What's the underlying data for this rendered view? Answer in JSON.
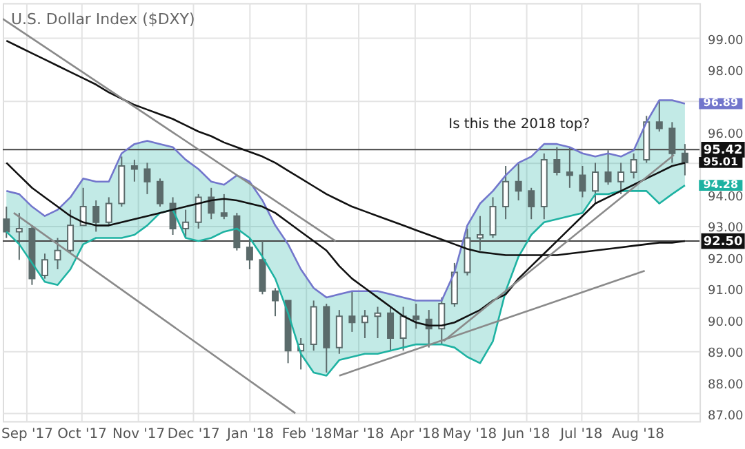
{
  "chart_data": {
    "type": "candlestick",
    "title": "U.S. Dollar Index ($DXY)",
    "x": [
      "2017-08-21",
      "2017-08-28",
      "2017-09-04",
      "2017-09-11",
      "2017-09-18",
      "2017-09-25",
      "2017-10-02",
      "2017-10-09",
      "2017-10-16",
      "2017-10-23",
      "2017-10-30",
      "2017-11-06",
      "2017-11-13",
      "2017-11-20",
      "2017-11-27",
      "2017-12-04",
      "2017-12-11",
      "2017-12-18",
      "2017-12-25",
      "2018-01-01",
      "2018-01-08",
      "2018-01-15",
      "2018-01-22",
      "2018-01-29",
      "2018-02-05",
      "2018-02-12",
      "2018-02-19",
      "2018-02-26",
      "2018-03-05",
      "2018-03-12",
      "2018-03-19",
      "2018-03-26",
      "2018-04-02",
      "2018-04-09",
      "2018-04-16",
      "2018-04-23",
      "2018-04-30",
      "2018-05-07",
      "2018-05-14",
      "2018-05-21",
      "2018-05-28",
      "2018-06-04",
      "2018-06-11",
      "2018-06-18",
      "2018-06-25",
      "2018-07-02",
      "2018-07-09",
      "2018-07-16",
      "2018-07-23",
      "2018-07-30",
      "2018-08-06",
      "2018-08-13",
      "2018-08-20",
      "2018-08-27"
    ],
    "ohlc": [
      [
        93.2,
        93.6,
        92.6,
        92.8
      ],
      [
        92.8,
        93.4,
        91.9,
        92.9
      ],
      [
        92.9,
        93.0,
        91.1,
        91.3
      ],
      [
        91.4,
        92.1,
        91.3,
        91.9
      ],
      [
        91.9,
        92.6,
        91.6,
        92.2
      ],
      [
        92.2,
        93.5,
        92.1,
        93.0
      ],
      [
        93.0,
        94.2,
        93.0,
        93.6
      ],
      [
        93.6,
        93.8,
        92.8,
        93.1
      ],
      [
        93.1,
        93.9,
        93.0,
        93.7
      ],
      [
        93.7,
        95.2,
        93.6,
        94.9
      ],
      [
        94.9,
        95.1,
        94.4,
        94.8
      ],
      [
        94.8,
        95.0,
        94.0,
        94.4
      ],
      [
        94.4,
        94.5,
        93.6,
        93.7
      ],
      [
        93.7,
        93.9,
        92.7,
        92.9
      ],
      [
        92.9,
        93.5,
        92.6,
        93.1
      ],
      [
        93.1,
        94.0,
        92.9,
        93.9
      ],
      [
        93.9,
        94.2,
        93.2,
        93.4
      ],
      [
        93.4,
        94.0,
        93.2,
        93.3
      ],
      [
        93.3,
        93.4,
        92.2,
        92.3
      ],
      [
        92.3,
        92.6,
        91.6,
        91.9
      ],
      [
        91.9,
        92.5,
        90.8,
        90.9
      ],
      [
        90.9,
        91.0,
        90.1,
        90.6
      ],
      [
        90.6,
        90.6,
        88.6,
        89.0
      ],
      [
        89.0,
        89.4,
        88.4,
        89.2
      ],
      [
        89.2,
        90.6,
        89.0,
        90.4
      ],
      [
        90.4,
        90.5,
        88.3,
        89.1
      ],
      [
        89.1,
        90.3,
        88.9,
        90.1
      ],
      [
        90.1,
        90.9,
        89.6,
        89.9
      ],
      [
        89.9,
        90.3,
        89.4,
        90.1
      ],
      [
        90.1,
        90.4,
        89.4,
        90.2
      ],
      [
        90.2,
        90.4,
        89.0,
        89.4
      ],
      [
        89.4,
        90.4,
        89.0,
        90.1
      ],
      [
        90.1,
        90.5,
        89.7,
        90.0
      ],
      [
        90.0,
        90.3,
        89.1,
        89.7
      ],
      [
        89.7,
        90.7,
        89.2,
        90.5
      ],
      [
        90.5,
        91.8,
        90.4,
        91.5
      ],
      [
        91.5,
        92.9,
        91.4,
        92.6
      ],
      [
        92.6,
        93.3,
        92.2,
        92.7
      ],
      [
        92.7,
        93.9,
        92.6,
        93.6
      ],
      [
        93.6,
        94.9,
        93.2,
        94.4
      ],
      [
        94.4,
        95.0,
        93.8,
        94.1
      ],
      [
        94.1,
        94.2,
        93.2,
        93.6
      ],
      [
        93.6,
        95.3,
        93.2,
        95.1
      ],
      [
        95.1,
        95.5,
        94.6,
        94.7
      ],
      [
        94.7,
        95.5,
        94.2,
        94.6
      ],
      [
        94.6,
        94.9,
        93.9,
        94.1
      ],
      [
        94.1,
        95.0,
        93.7,
        94.7
      ],
      [
        94.7,
        95.4,
        94.3,
        94.4
      ],
      [
        94.4,
        95.0,
        94.0,
        94.7
      ],
      [
        94.7,
        95.3,
        94.5,
        95.1
      ],
      [
        95.1,
        96.5,
        95.0,
        96.3
      ],
      [
        96.3,
        96.99,
        96.0,
        96.1
      ],
      [
        96.1,
        96.3,
        95.0,
        95.3
      ],
      [
        95.3,
        95.6,
        94.6,
        95.01
      ]
    ],
    "color": "#5b6b6b",
    "series": [
      {
        "type": "line",
        "color": "#7276cc",
        "values": [
          94.1,
          94.0,
          93.6,
          93.3,
          93.5,
          93.9,
          94.5,
          94.4,
          94.4,
          95.3,
          95.6,
          95.7,
          95.6,
          95.5,
          95.1,
          94.8,
          94.4,
          94.3,
          94.6,
          94.4,
          93.8,
          93.0,
          92.4,
          91.6,
          91.0,
          90.7,
          90.8,
          90.9,
          90.9,
          90.9,
          90.8,
          90.7,
          90.6,
          90.6,
          90.6,
          91.5,
          93.0,
          93.7,
          94.1,
          94.6,
          95.0,
          95.2,
          95.6,
          95.6,
          95.5,
          95.3,
          95.2,
          95.3,
          95.2,
          95.4,
          96.3,
          97.0,
          97.0,
          96.89
        ]
      },
      {
        "type": "line",
        "color": "#1eb2a2",
        "values": [
          92.8,
          92.4,
          91.8,
          91.2,
          91.1,
          91.6,
          92.4,
          92.6,
          92.6,
          92.6,
          92.7,
          93.0,
          93.4,
          93.5,
          92.6,
          92.5,
          92.6,
          92.8,
          92.9,
          92.6,
          92.0,
          91.3,
          90.2,
          88.9,
          88.3,
          88.2,
          88.7,
          88.8,
          88.9,
          88.9,
          89.0,
          89.1,
          89.2,
          89.2,
          89.2,
          89.1,
          88.8,
          88.6,
          89.3,
          90.9,
          92.0,
          92.7,
          93.1,
          93.2,
          93.3,
          93.4,
          94.0,
          94.0,
          94.1,
          94.1,
          94.1,
          93.7,
          94.0,
          94.28
        ],
        "lower": [
          92.8,
          92.4,
          91.8,
          91.2,
          91.1,
          91.6,
          92.4,
          92.6,
          92.6,
          92.6,
          92.7,
          93.0,
          93.4,
          93.5,
          92.6,
          92.5,
          92.6,
          92.8,
          92.9,
          92.6,
          92.0,
          91.3,
          90.2,
          88.9,
          88.3,
          88.2,
          88.7,
          88.8,
          88.9,
          88.9,
          89.0,
          89.1,
          89.2,
          89.2,
          89.2,
          89.1,
          88.8,
          88.6,
          89.3,
          90.9,
          92.0,
          92.7,
          93.1,
          93.2,
          93.3,
          93.4,
          94.0,
          94.0,
          94.1,
          94.1,
          94.1,
          93.7,
          94.0,
          94.28
        ],
        "upper": [
          94.1,
          94.0,
          93.6,
          93.3,
          93.5,
          93.9,
          94.5,
          94.4,
          94.4,
          95.3,
          95.6,
          95.7,
          95.6,
          95.5,
          95.1,
          94.8,
          94.4,
          94.3,
          94.6,
          94.4,
          93.8,
          93.0,
          92.4,
          91.6,
          91.0,
          90.7,
          90.8,
          90.9,
          90.9,
          90.9,
          90.8,
          90.7,
          90.6,
          90.6,
          90.6,
          91.5,
          93.0,
          93.7,
          94.1,
          94.6,
          95.0,
          95.2,
          95.6,
          95.6,
          95.5,
          95.3,
          95.2,
          95.3,
          95.2,
          95.4,
          96.3,
          97.0,
          97.0,
          96.89
        ]
      },
      {
        "type": "line",
        "color": "#111111",
        "values": [
          95.0,
          94.6,
          94.2,
          93.9,
          93.6,
          93.3,
          93.1,
          93.0,
          93.0,
          93.1,
          93.2,
          93.3,
          93.4,
          93.5,
          93.6,
          93.7,
          93.8,
          93.85,
          93.8,
          93.7,
          93.6,
          93.4,
          93.1,
          92.8,
          92.5,
          92.2,
          91.7,
          91.3,
          91.0,
          90.7,
          90.4,
          90.1,
          89.9,
          89.8,
          89.8,
          89.9,
          90.1,
          90.3,
          90.6,
          90.8,
          91.3,
          91.7,
          92.1,
          92.5,
          92.9,
          93.3,
          93.7,
          93.9,
          94.1,
          94.3,
          94.5,
          94.7,
          94.9,
          95.0
        ]
      },
      {
        "type": "line",
        "color": "#111111",
        "values": [
          98.9,
          98.7,
          98.5,
          98.3,
          98.1,
          97.9,
          97.7,
          97.5,
          97.25,
          97.05,
          96.85,
          96.7,
          96.55,
          96.4,
          96.2,
          96.0,
          95.85,
          95.65,
          95.5,
          95.35,
          95.2,
          95.0,
          94.75,
          94.5,
          94.25,
          94.0,
          93.8,
          93.6,
          93.45,
          93.3,
          93.15,
          93.0,
          92.85,
          92.7,
          92.55,
          92.4,
          92.25,
          92.15,
          92.1,
          92.05,
          92.05,
          92.05,
          92.05,
          92.05,
          92.1,
          92.15,
          92.2,
          92.25,
          92.3,
          92.35,
          92.4,
          92.45,
          92.45,
          92.5
        ]
      },
      {
        "type": "line",
        "color": "#8a8a8a",
        "x": [
          "2017-08-19",
          "2018-02-17"
        ],
        "values": [
          99.6,
          92.5
        ]
      },
      {
        "type": "line",
        "color": "#8a8a8a",
        "x": [
          "2017-08-25",
          "2018-01-26"
        ],
        "values": [
          93.4,
          87.0
        ]
      },
      {
        "type": "line",
        "color": "#8a8a8a",
        "x": [
          "2018-02-19",
          "2018-08-05"
        ],
        "values": [
          88.2,
          91.55
        ]
      },
      {
        "type": "line",
        "color": "#8a8a8a",
        "x": [
          "2018-04-17",
          "2018-08-21"
        ],
        "values": [
          89.3,
          95.25
        ]
      }
    ],
    "ref_lines": [
      {
        "axis": "y",
        "value": 95.42,
        "label": "95.42",
        "color": "#444444"
      },
      {
        "axis": "y",
        "value": 92.5,
        "label": "92.50",
        "color": "#444444"
      }
    ],
    "annotations": [
      "Is this the 2018 top?",
      {
        "text": "96.89",
        "x": "2018-08-27",
        "y": 96.89
      },
      {
        "text": "95.01",
        "x": "2018-08-27",
        "y": 95.01
      },
      {
        "text": "94.28",
        "x": "2018-08-27",
        "y": 94.28
      }
    ],
    "xlim": [
      "2017-08-19",
      "2018-09-04"
    ],
    "xticks": [
      {
        "value": "2017-09-01",
        "label": "Sep '17"
      },
      {
        "value": "2017-10-01",
        "label": "Oct '17"
      },
      {
        "value": "2017-11-01",
        "label": "Nov '17"
      },
      {
        "value": "2017-12-01",
        "label": "Dec '17"
      },
      {
        "value": "2018-01-01",
        "label": "Jan '18"
      },
      {
        "value": "2018-02-01",
        "label": "Feb '18"
      },
      {
        "value": "2018-03-01",
        "label": "Mar '18"
      },
      {
        "value": "2018-04-01",
        "label": "Apr '18"
      },
      {
        "value": "2018-05-01",
        "label": "May '18"
      },
      {
        "value": "2018-06-01",
        "label": "Jun '18"
      },
      {
        "value": "2018-07-01",
        "label": "Jul '18"
      },
      {
        "value": "2018-08-01",
        "label": "Aug '18"
      }
    ],
    "ylim": [
      86.75,
      100.1
    ],
    "yticks": [
      {
        "value": 87,
        "label": "87.00"
      },
      {
        "value": 88,
        "label": "88.00"
      },
      {
        "value": 89,
        "label": "89.00"
      },
      {
        "value": 90,
        "label": "90.00"
      },
      {
        "value": 91,
        "label": "91.00"
      },
      {
        "value": 92,
        "label": "92.00"
      },
      {
        "value": 93,
        "label": "93.00"
      },
      {
        "value": 94,
        "label": "94.00"
      },
      {
        "value": 95,
        "label": null
      },
      {
        "value": 96,
        "label": "96.00"
      },
      {
        "value": 97,
        "label": null
      },
      {
        "value": 98,
        "label": "98.00"
      },
      {
        "value": 99,
        "label": "99.00"
      }
    ],
    "grid": true
  }
}
